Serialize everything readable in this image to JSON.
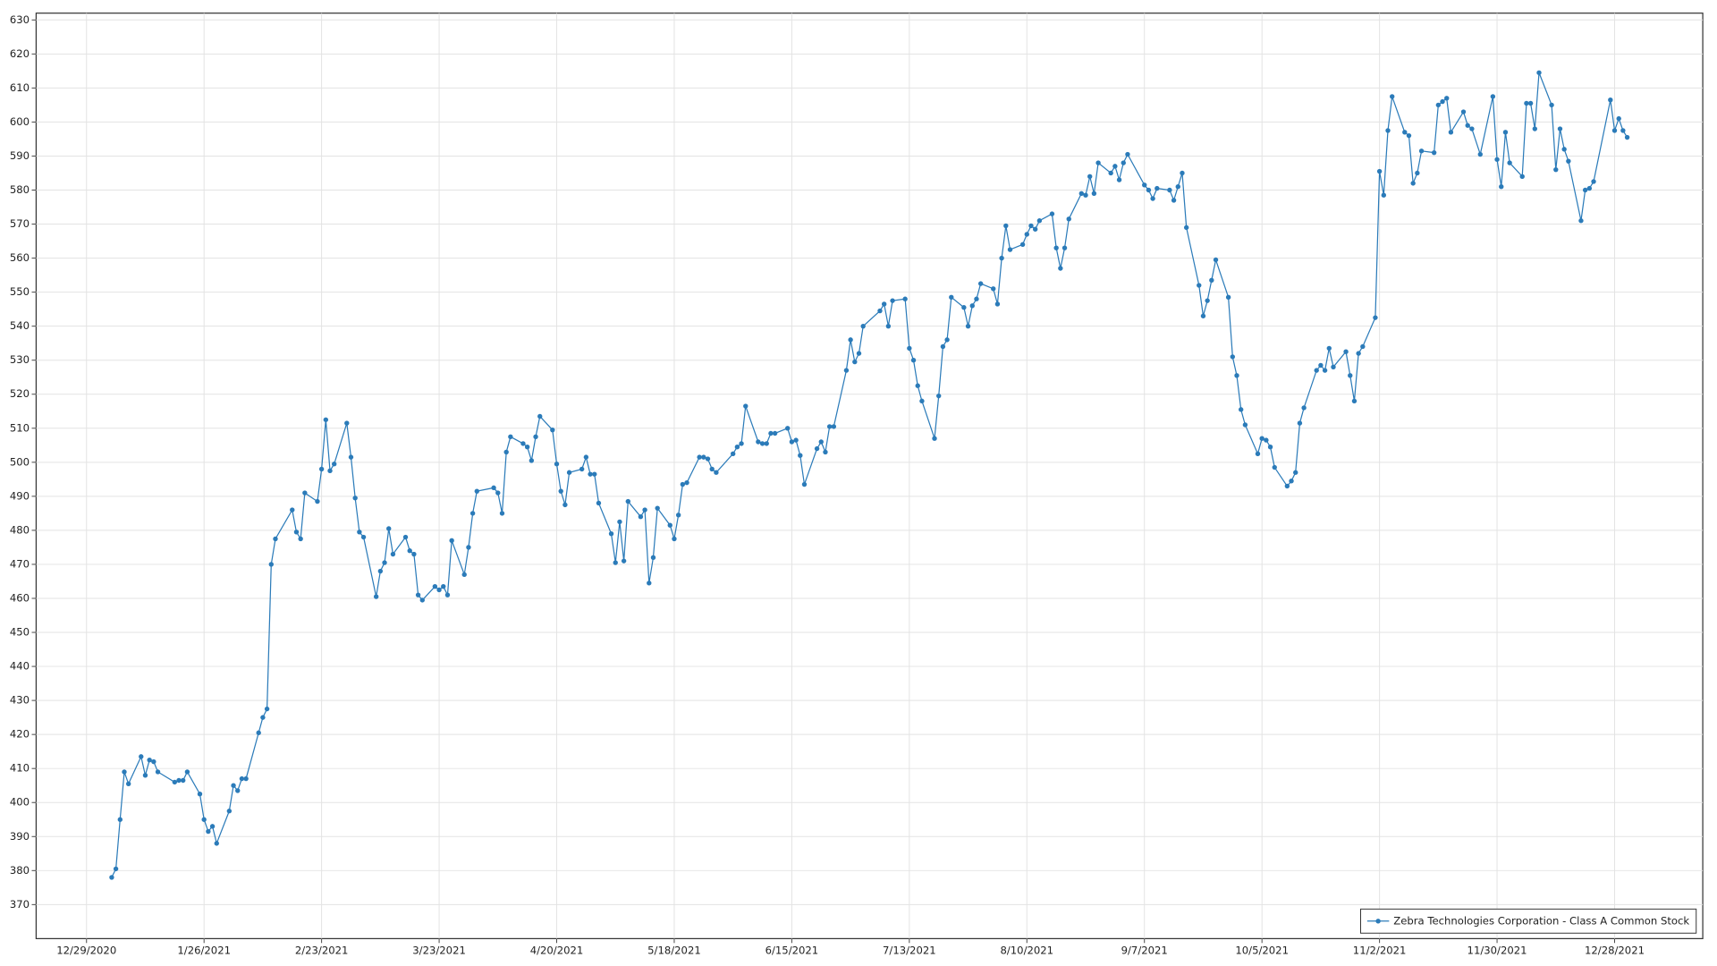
{
  "chart_data": {
    "type": "line",
    "x": [
      "1/4/2021",
      "1/5/2021",
      "1/6/2021",
      "1/7/2021",
      "1/8/2021",
      "1/11/2021",
      "1/12/2021",
      "1/13/2021",
      "1/14/2021",
      "1/15/2021",
      "1/19/2021",
      "1/20/2021",
      "1/21/2021",
      "1/22/2021",
      "1/25/2021",
      "1/26/2021",
      "1/27/2021",
      "1/28/2021",
      "1/29/2021",
      "2/1/2021",
      "2/2/2021",
      "2/3/2021",
      "2/4/2021",
      "2/5/2021",
      "2/8/2021",
      "2/9/2021",
      "2/10/2021",
      "2/11/2021",
      "2/12/2021",
      "2/16/2021",
      "2/17/2021",
      "2/18/2021",
      "2/19/2021",
      "2/22/2021",
      "2/23/2021",
      "2/24/2021",
      "2/25/2021",
      "2/26/2021",
      "3/1/2021",
      "3/2/2021",
      "3/3/2021",
      "3/4/2021",
      "3/5/2021",
      "3/8/2021",
      "3/9/2021",
      "3/10/2021",
      "3/11/2021",
      "3/12/2021",
      "3/15/2021",
      "3/16/2021",
      "3/17/2021",
      "3/18/2021",
      "3/19/2021",
      "3/22/2021",
      "3/23/2021",
      "3/24/2021",
      "3/25/2021",
      "3/26/2021",
      "3/29/2021",
      "3/30/2021",
      "3/31/2021",
      "4/1/2021",
      "4/5/2021",
      "4/6/2021",
      "4/7/2021",
      "4/8/2021",
      "4/9/2021",
      "4/12/2021",
      "4/13/2021",
      "4/14/2021",
      "4/15/2021",
      "4/16/2021",
      "4/19/2021",
      "4/20/2021",
      "4/21/2021",
      "4/22/2021",
      "4/23/2021",
      "4/26/2021",
      "4/27/2021",
      "4/28/2021",
      "4/29/2021",
      "4/30/2021",
      "5/3/2021",
      "5/4/2021",
      "5/5/2021",
      "5/6/2021",
      "5/7/2021",
      "5/10/2021",
      "5/11/2021",
      "5/12/2021",
      "5/13/2021",
      "5/14/2021",
      "5/17/2021",
      "5/18/2021",
      "5/19/2021",
      "5/20/2021",
      "5/21/2021",
      "5/24/2021",
      "5/25/2021",
      "5/26/2021",
      "5/27/2021",
      "5/28/2021",
      "6/1/2021",
      "6/2/2021",
      "6/3/2021",
      "6/4/2021",
      "6/7/2021",
      "6/8/2021",
      "6/9/2021",
      "6/10/2021",
      "6/11/2021",
      "6/14/2021",
      "6/15/2021",
      "6/16/2021",
      "6/17/2021",
      "6/18/2021",
      "6/21/2021",
      "6/22/2021",
      "6/23/2021",
      "6/24/2021",
      "6/25/2021",
      "6/28/2021",
      "6/29/2021",
      "6/30/2021",
      "7/1/2021",
      "7/2/2021",
      "7/6/2021",
      "7/7/2021",
      "7/8/2021",
      "7/9/2021",
      "7/12/2021",
      "7/13/2021",
      "7/14/2021",
      "7/15/2021",
      "7/16/2021",
      "7/19/2021",
      "7/20/2021",
      "7/21/2021",
      "7/22/2021",
      "7/23/2021",
      "7/26/2021",
      "7/27/2021",
      "7/28/2021",
      "7/29/2021",
      "7/30/2021",
      "8/2/2021",
      "8/3/2021",
      "8/4/2021",
      "8/5/2021",
      "8/6/2021",
      "8/9/2021",
      "8/10/2021",
      "8/11/2021",
      "8/12/2021",
      "8/13/2021",
      "8/16/2021",
      "8/17/2021",
      "8/18/2021",
      "8/19/2021",
      "8/20/2021",
      "8/23/2021",
      "8/24/2021",
      "8/25/2021",
      "8/26/2021",
      "8/27/2021",
      "8/30/2021",
      "8/31/2021",
      "9/1/2021",
      "9/2/2021",
      "9/3/2021",
      "9/7/2021",
      "9/8/2021",
      "9/9/2021",
      "9/10/2021",
      "9/13/2021",
      "9/14/2021",
      "9/15/2021",
      "9/16/2021",
      "9/17/2021",
      "9/20/2021",
      "9/21/2021",
      "9/22/2021",
      "9/23/2021",
      "9/24/2021",
      "9/27/2021",
      "9/28/2021",
      "9/29/2021",
      "9/30/2021",
      "10/1/2021",
      "10/4/2021",
      "10/5/2021",
      "10/6/2021",
      "10/7/2021",
      "10/8/2021",
      "10/11/2021",
      "10/12/2021",
      "10/13/2021",
      "10/14/2021",
      "10/15/2021",
      "10/18/2021",
      "10/19/2021",
      "10/20/2021",
      "10/21/2021",
      "10/22/2021",
      "10/25/2021",
      "10/26/2021",
      "10/27/2021",
      "10/28/2021",
      "10/29/2021",
      "11/1/2021",
      "11/2/2021",
      "11/3/2021",
      "11/4/2021",
      "11/5/2021",
      "11/8/2021",
      "11/9/2021",
      "11/10/2021",
      "11/11/2021",
      "11/12/2021",
      "11/15/2021",
      "11/16/2021",
      "11/17/2021",
      "11/18/2021",
      "11/19/2021",
      "11/22/2021",
      "11/23/2021",
      "11/24/2021",
      "11/26/2021",
      "11/29/2021",
      "11/30/2021",
      "12/1/2021",
      "12/2/2021",
      "12/3/2021",
      "12/6/2021",
      "12/7/2021",
      "12/8/2021",
      "12/9/2021",
      "12/10/2021",
      "12/13/2021",
      "12/14/2021",
      "12/15/2021",
      "12/16/2021",
      "12/17/2021",
      "12/20/2021",
      "12/21/2021",
      "12/22/2021",
      "12/23/2021",
      "12/27/2021",
      "12/28/2021",
      "12/29/2021",
      "12/30/2021",
      "12/31/2021"
    ],
    "series": [
      {
        "name": "Zebra Technologies Corporation - Class A Common Stock",
        "color": "#2b7bb9",
        "values": [
          378,
          380.5,
          395,
          409,
          405.5,
          413.5,
          408,
          412.5,
          412,
          409,
          406,
          406.5,
          406.5,
          409,
          402.5,
          395,
          391.5,
          393,
          388,
          397.5,
          405,
          403.5,
          407,
          407,
          420.5,
          425,
          427.5,
          470,
          477.5,
          486,
          479.5,
          477.5,
          491,
          488.5,
          498,
          512.5,
          497.5,
          499.5,
          511.5,
          501.5,
          489.5,
          479.5,
          478,
          460.5,
          468,
          470.5,
          480.5,
          473,
          478,
          474,
          473,
          461,
          459.5,
          463.5,
          462.5,
          463.5,
          461,
          477,
          467,
          475,
          485,
          491.5,
          492.5,
          491,
          485,
          503,
          507.5,
          505.5,
          504.5,
          500.5,
          507.5,
          513.5,
          509.5,
          499.5,
          491.5,
          487.5,
          497,
          498,
          501.5,
          496.5,
          496.5,
          488,
          479,
          470.5,
          482.5,
          471,
          488.5,
          484,
          486,
          464.5,
          472,
          486.5,
          481.5,
          477.5,
          484.5,
          493.5,
          494,
          501.5,
          501.5,
          501,
          498,
          497,
          502.5,
          504.5,
          505.5,
          516.5,
          506,
          505.5,
          505.5,
          508.5,
          508.5,
          510,
          506,
          506.5,
          502,
          493.5,
          504,
          506,
          503,
          510.5,
          510.5,
          527,
          536,
          529.5,
          532,
          540,
          544.5,
          546.5,
          540,
          547.5,
          548,
          533.5,
          530,
          522.5,
          518,
          507,
          519.5,
          534,
          536,
          548.5,
          545.5,
          540,
          546,
          548,
          552.5,
          551,
          546.5,
          560,
          569.5,
          562.5,
          564,
          567,
          569.5,
          568.5,
          571,
          573,
          563,
          557,
          563,
          571.5,
          579,
          578.5,
          584,
          579,
          588,
          585,
          587,
          583,
          588,
          590.5,
          581.5,
          580,
          577.5,
          580.5,
          580,
          577,
          581,
          585,
          569,
          552,
          543,
          547.5,
          553.5,
          559.5,
          548.5,
          531,
          525.5,
          515.5,
          511,
          502.5,
          507,
          506.5,
          504.5,
          498.5,
          493,
          494.5,
          497,
          511.5,
          516,
          527,
          528.5,
          527,
          533.5,
          528,
          532.5,
          525.5,
          518,
          532,
          534,
          542.5,
          585.5,
          578.5,
          597.5,
          607.5,
          597,
          596,
          582,
          585,
          591.5,
          591,
          605,
          606,
          607,
          597,
          603,
          599,
          598,
          590.5,
          607.5,
          589,
          581,
          597,
          588,
          584,
          605.5,
          605.5,
          598,
          614.5,
          605,
          586,
          598,
          592,
          588.5,
          571,
          580,
          580.5,
          582.5,
          606.5,
          597.5,
          601,
          597.5,
          595.5
        ]
      }
    ],
    "xlim": [
      "12/17/2020",
      "1/18/2022"
    ],
    "xticks": [
      "12/29/2020",
      "1/26/2021",
      "2/23/2021",
      "3/23/2021",
      "4/20/2021",
      "5/18/2021",
      "6/15/2021",
      "7/13/2021",
      "8/10/2021",
      "9/7/2021",
      "10/5/2021",
      "11/2/2021",
      "11/30/2021",
      "12/28/2021"
    ],
    "ylim": [
      360,
      632
    ],
    "yticks": [
      370,
      380,
      390,
      400,
      410,
      420,
      430,
      440,
      450,
      460,
      470,
      480,
      490,
      500,
      510,
      520,
      530,
      540,
      550,
      560,
      570,
      580,
      590,
      600,
      610,
      620,
      630
    ],
    "grid": true,
    "legend": "lower right",
    "markers": true
  }
}
